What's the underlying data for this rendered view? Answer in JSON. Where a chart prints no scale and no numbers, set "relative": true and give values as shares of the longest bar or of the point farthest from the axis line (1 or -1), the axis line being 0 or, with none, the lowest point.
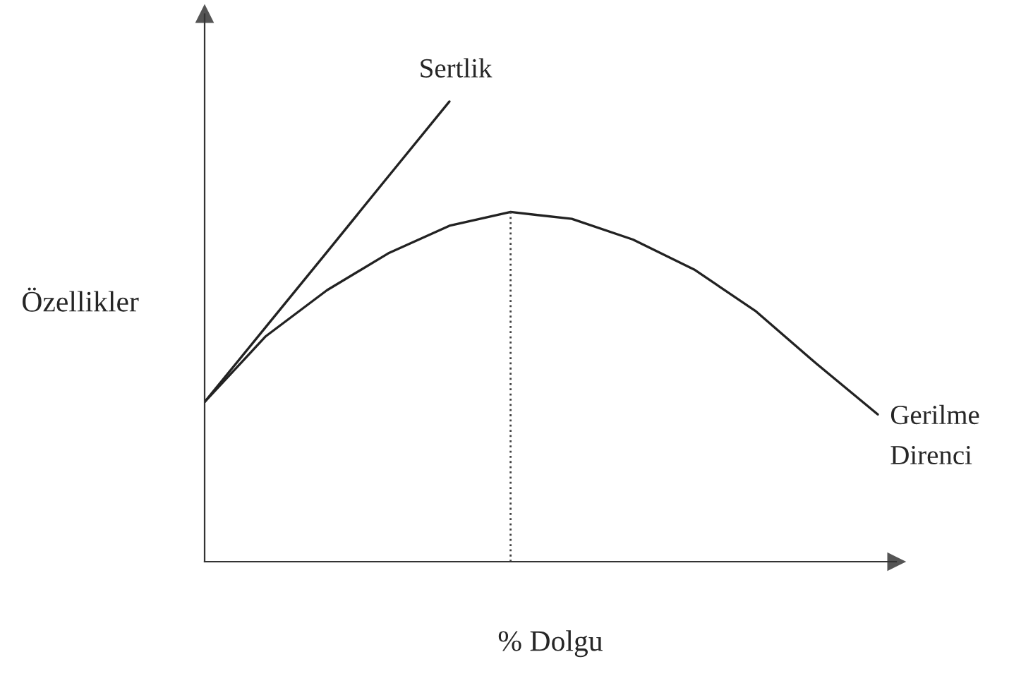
{
  "chart_data": {
    "type": "line",
    "relative": true,
    "xlabel": "% Dolgu",
    "ylabel": "Özellikler",
    "categories": [
      null,
      null,
      null,
      null,
      null,
      null,
      null,
      null,
      null,
      null,
      null,
      null
    ],
    "series": [
      {
        "name": "Sertlik",
        "color": "#222222",
        "values": [
          0.347,
          0.51,
          0.673,
          0.837,
          1,
          null,
          null,
          null,
          null,
          null,
          null,
          null
        ]
      },
      {
        "name": "Gerilme\nDirenci",
        "color": "#222222",
        "values": [
          0.347,
          0.49,
          0.59,
          0.67,
          0.73,
          0.76,
          0.745,
          0.7,
          0.635,
          0.545,
          0.43,
          0.32
        ]
      }
    ],
    "legend": false,
    "tick_labels": false,
    "marker": "none",
    "line_style": "solid"
  }
}
